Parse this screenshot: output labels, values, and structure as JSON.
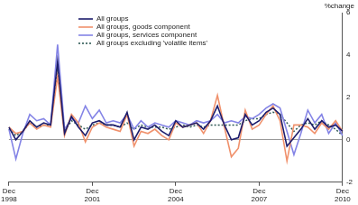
{
  "chart_data": {
    "type": "line",
    "ylabel": "%change",
    "categories": [
      "Dec 1998",
      null,
      null,
      null,
      null,
      null,
      null,
      null,
      null,
      null,
      null,
      null,
      "Dec 2001",
      null,
      null,
      null,
      null,
      null,
      null,
      null,
      null,
      null,
      null,
      null,
      "Dec 2004",
      null,
      null,
      null,
      null,
      null,
      null,
      null,
      null,
      null,
      null,
      null,
      "Dec 2007",
      null,
      null,
      null,
      null,
      null,
      null,
      null,
      null,
      null,
      null,
      null,
      "Dec 2010"
    ],
    "series": [
      {
        "name": "All groups",
        "color": "#1c1c6b",
        "line_style": "solid",
        "values": [
          0.6,
          0.0,
          0.4,
          0.9,
          0.6,
          0.8,
          0.7,
          3.7,
          0.3,
          1.1,
          0.6,
          0.2,
          0.8,
          0.9,
          0.7,
          0.7,
          0.6,
          1.3,
          0.0,
          0.6,
          0.5,
          0.7,
          0.4,
          0.2,
          0.9,
          0.6,
          0.7,
          0.8,
          0.5,
          0.9,
          1.6,
          0.7,
          0.0,
          0.1,
          1.2,
          0.7,
          0.9,
          1.3,
          1.5,
          1.2,
          -0.3,
          0.1,
          0.5,
          1.0,
          0.5,
          0.9,
          0.6,
          0.7,
          0.4
        ]
      },
      {
        "name": "All groups, goods component",
        "color": "#f0916c",
        "line_style": "solid",
        "values": [
          0.6,
          0.3,
          0.4,
          0.8,
          0.5,
          0.7,
          0.6,
          3.0,
          0.2,
          1.2,
          0.8,
          -0.1,
          0.6,
          0.8,
          0.6,
          0.5,
          0.4,
          1.2,
          -0.3,
          0.4,
          0.3,
          0.5,
          0.2,
          0.0,
          0.8,
          0.6,
          0.7,
          0.8,
          0.3,
          0.9,
          2.1,
          0.6,
          -0.8,
          -0.4,
          1.4,
          0.5,
          0.7,
          1.2,
          1.6,
          0.9,
          -1.0,
          0.7,
          0.7,
          0.6,
          0.3,
          0.8,
          0.5,
          0.9,
          0.4
        ]
      },
      {
        "name": "All groups, services component",
        "color": "#8484e6",
        "line_style": "solid",
        "values": [
          0.5,
          -0.9,
          0.3,
          1.2,
          0.9,
          1.0,
          0.7,
          4.5,
          0.5,
          1.0,
          0.8,
          1.6,
          1.0,
          1.4,
          0.8,
          0.9,
          0.8,
          1.2,
          0.5,
          0.9,
          0.6,
          0.8,
          0.7,
          0.6,
          0.9,
          0.8,
          0.7,
          0.9,
          0.8,
          0.9,
          1.2,
          0.8,
          0.9,
          0.8,
          1.1,
          1.0,
          1.2,
          1.5,
          1.7,
          1.5,
          0.4,
          -0.7,
          0.3,
          1.4,
          0.8,
          1.2,
          0.3,
          0.8,
          0.2
        ]
      },
      {
        "name": "All groups excluding 'volatile items'",
        "color": "#2f5a55",
        "line_style": "dotted",
        "values": [
          0.5,
          0.2,
          0.4,
          0.8,
          0.6,
          0.7,
          0.7,
          3.3,
          0.4,
          0.9,
          0.7,
          0.5,
          0.7,
          0.8,
          0.7,
          0.7,
          0.6,
          0.8,
          0.5,
          0.7,
          0.6,
          0.6,
          0.6,
          0.5,
          0.6,
          0.7,
          0.6,
          0.7,
          0.6,
          0.7,
          0.7,
          0.7,
          0.7,
          0.7,
          0.9,
          1.0,
          1.0,
          1.2,
          1.3,
          1.2,
          0.8,
          0.4,
          0.7,
          0.8,
          0.7,
          0.9,
          0.7,
          0.5,
          0.2
        ]
      }
    ],
    "ylim": [
      -2,
      6
    ],
    "yticks": [
      -2,
      0,
      2,
      4,
      6
    ],
    "grid": false,
    "legend": "top-left"
  }
}
